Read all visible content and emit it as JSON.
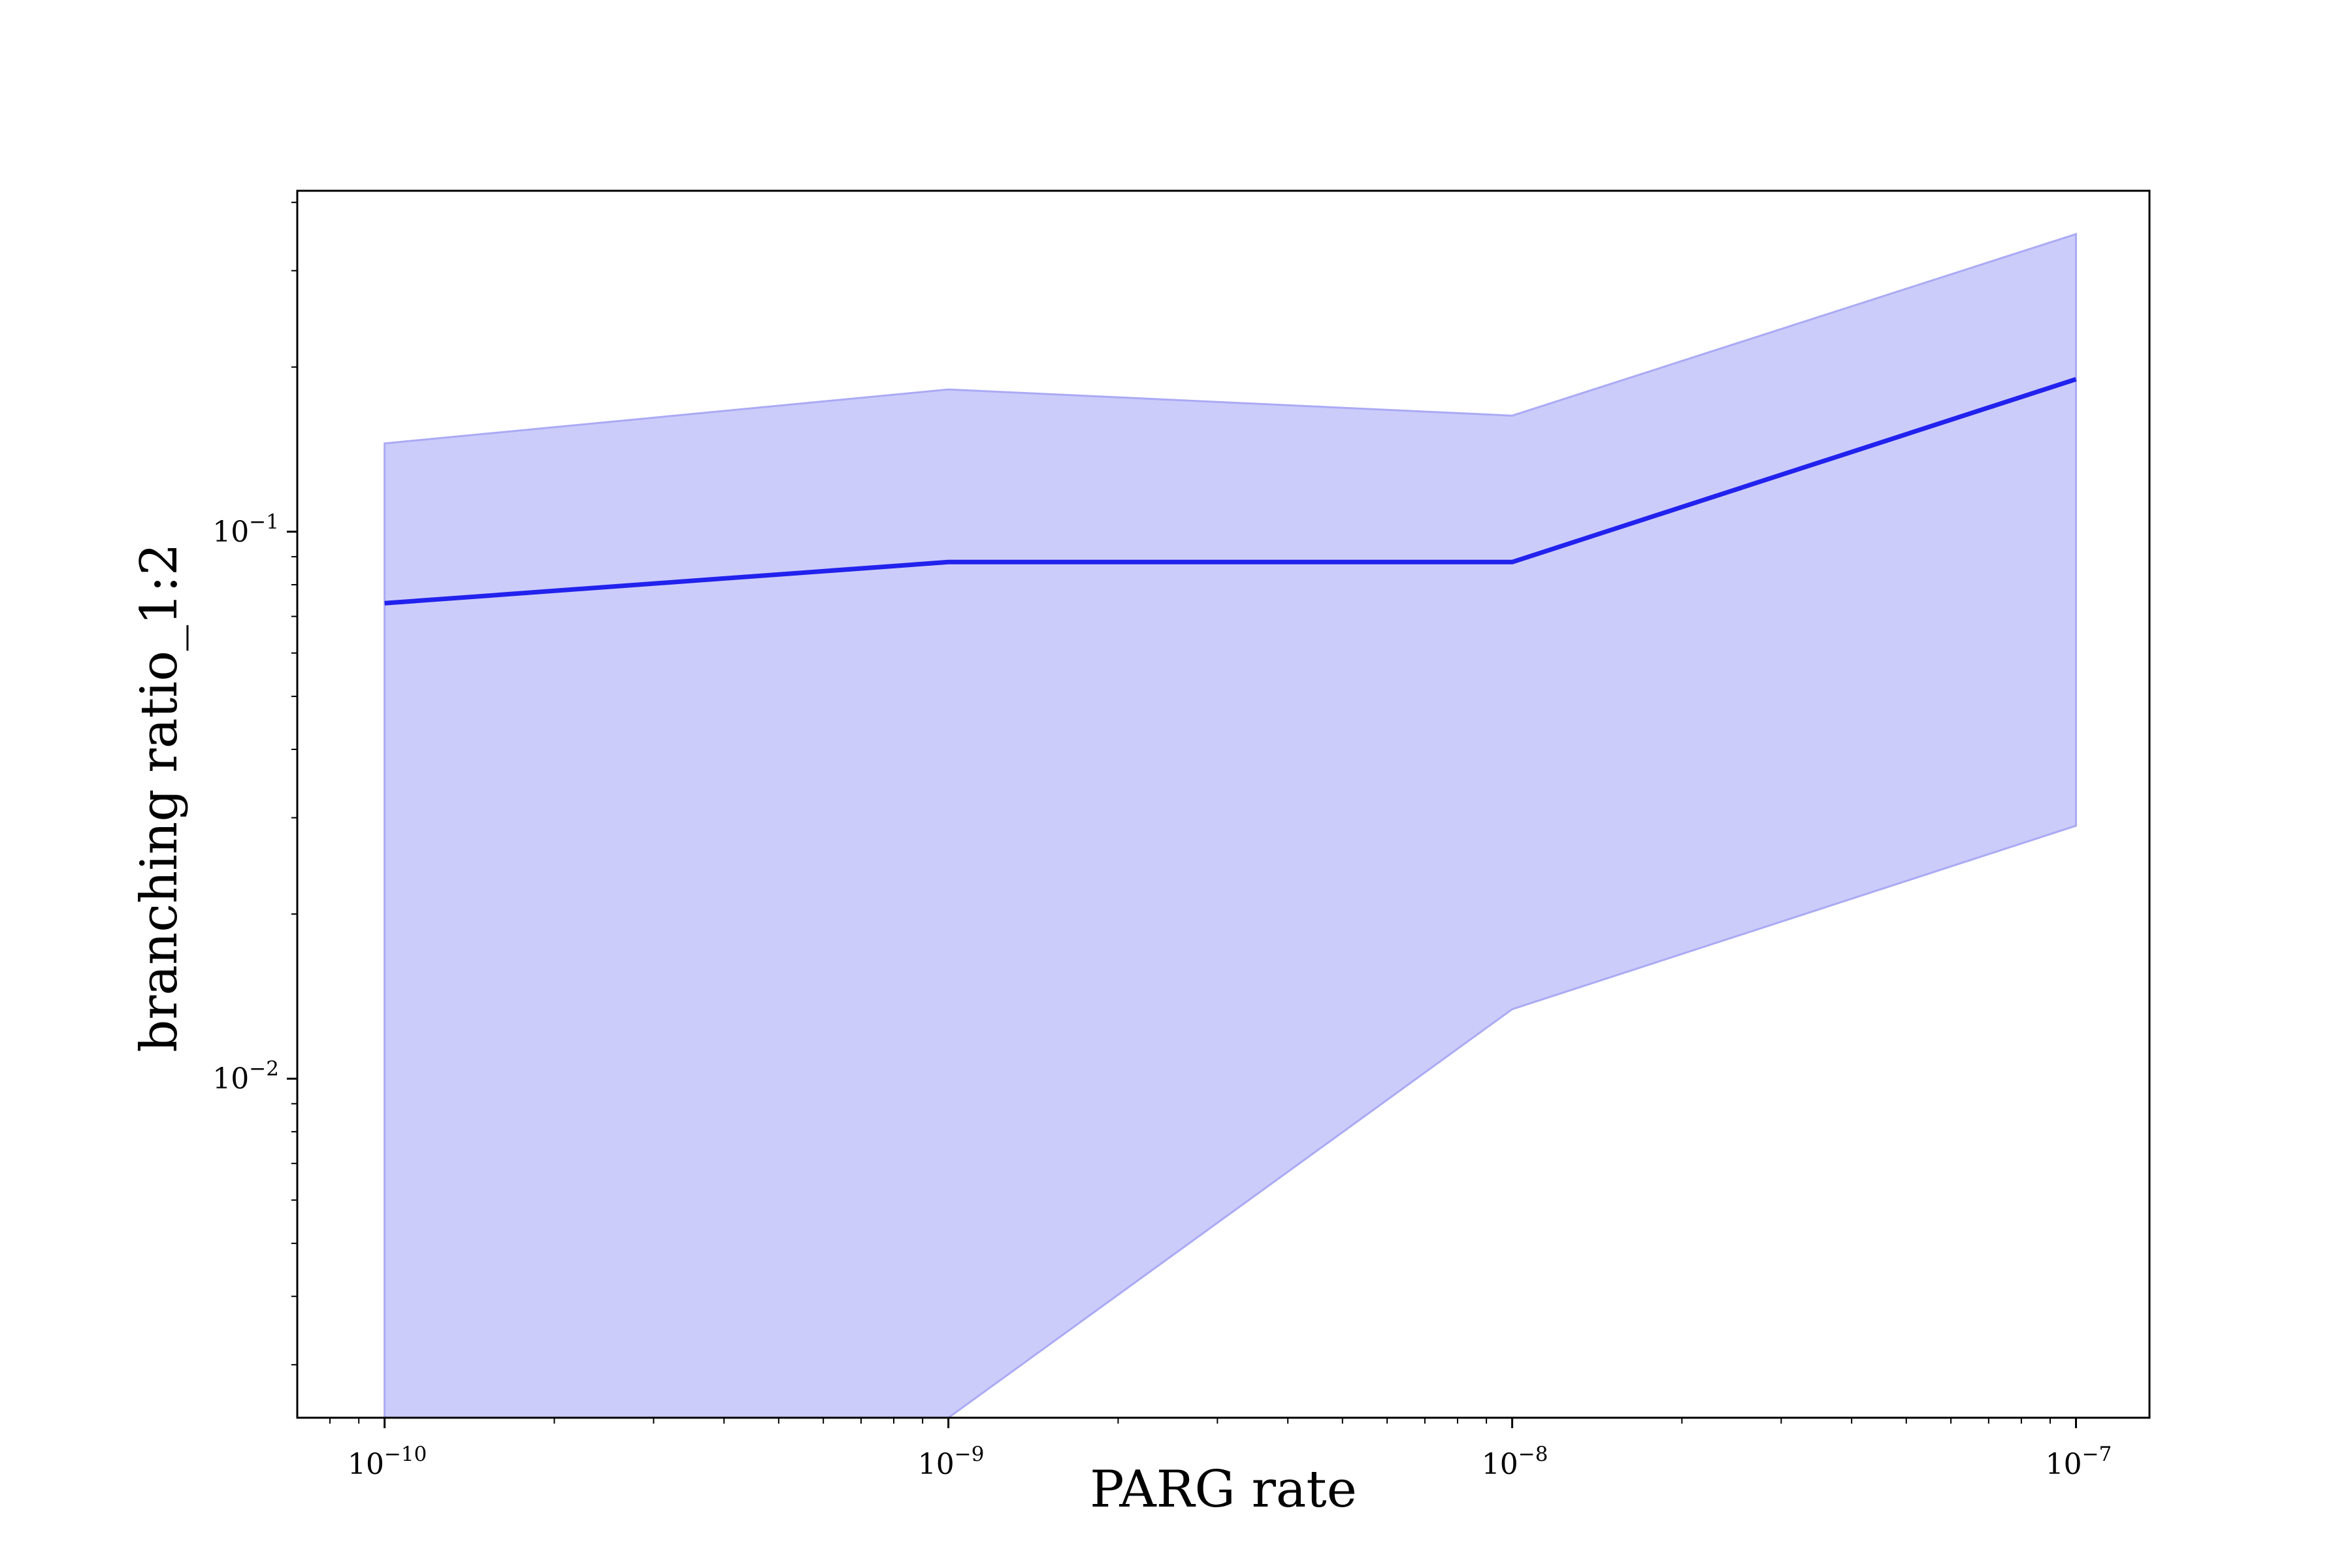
{
  "chart_data": {
    "type": "area",
    "title": "",
    "xlabel": "PARG rate",
    "ylabel": "branching ratio_1:2",
    "xscale": "log",
    "yscale": "log",
    "xlim": [
      7e-11,
      1.35e-07
    ],
    "ylim": [
      0.0024,
      0.42
    ],
    "grid": false,
    "legend": "none",
    "x_ticks": [
      {
        "value": 1e-10,
        "base": "10",
        "exponent": "−10"
      },
      {
        "value": 1e-09,
        "base": "10",
        "exponent": "−9"
      },
      {
        "value": 1e-08,
        "base": "10",
        "exponent": "−8"
      },
      {
        "value": 1e-07,
        "base": "10",
        "exponent": "−7"
      }
    ],
    "y_ticks": [
      {
        "value": 0.01,
        "base": "10",
        "exponent": "−2"
      },
      {
        "value": 0.1,
        "base": "10",
        "exponent": "−1"
      }
    ],
    "x": [
      1e-10,
      1e-09,
      1e-08,
      1e-07
    ],
    "series": [
      {
        "values": [
          0.074,
          0.088,
          0.088,
          0.19
        ],
        "band_upper": [
          0.145,
          0.182,
          0.163,
          0.35
        ],
        "band_lower": [
          0.0024,
          0.0024,
          0.0134,
          0.029
        ],
        "color": "#2222ee",
        "band_color": "#ccccfa",
        "band_edge_color": "#aaaaf5"
      }
    ]
  }
}
